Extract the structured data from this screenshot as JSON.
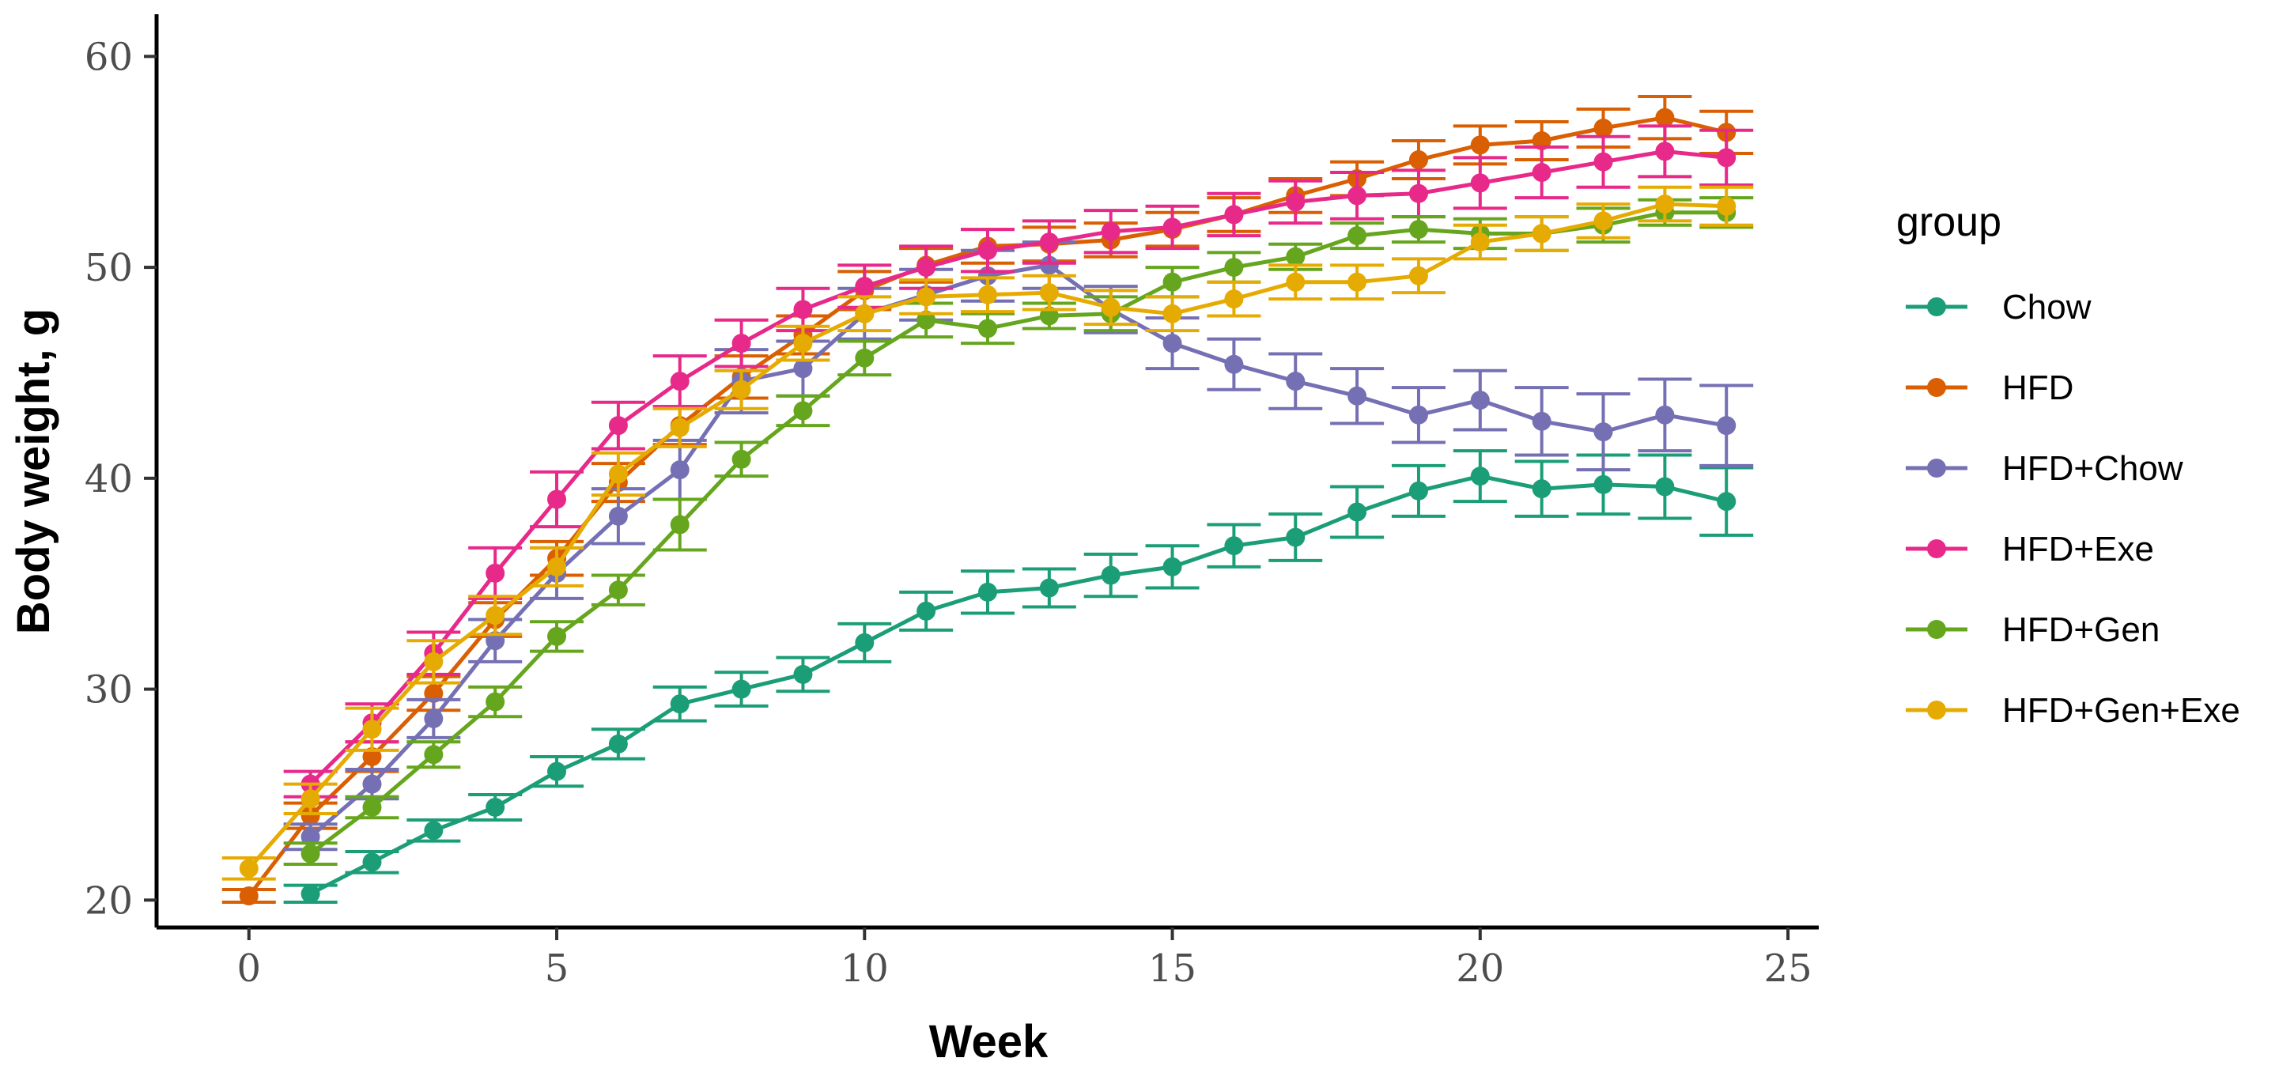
{
  "chart_data": {
    "type": "line",
    "title": "",
    "xlabel": "Week",
    "ylabel": "Body weight, g",
    "xlim": [
      -1.5,
      25.5
    ],
    "ylim": [
      18.7,
      62
    ],
    "xticks": [
      0,
      5,
      10,
      15,
      20,
      25
    ],
    "yticks": [
      20,
      30,
      40,
      50,
      60
    ],
    "grid": false,
    "legend": {
      "title": "group",
      "position": "right"
    },
    "series": [
      {
        "name": "Chow",
        "color": "#1B9E77",
        "x": [
          1,
          2,
          3,
          4,
          5,
          6,
          7,
          8,
          9,
          10,
          11,
          12,
          13,
          14,
          15,
          16,
          17,
          18,
          19,
          20,
          21,
          22,
          23,
          24
        ],
        "y": [
          20.3,
          21.8,
          23.3,
          24.4,
          26.1,
          27.4,
          29.3,
          30.0,
          30.7,
          32.2,
          33.7,
          34.6,
          34.8,
          35.4,
          35.8,
          36.8,
          37.2,
          38.4,
          39.4,
          40.1,
          39.5,
          39.7,
          39.6,
          38.9
        ],
        "err": [
          0.4,
          0.5,
          0.5,
          0.6,
          0.7,
          0.7,
          0.8,
          0.8,
          0.8,
          0.9,
          0.9,
          1.0,
          0.9,
          1.0,
          1.0,
          1.0,
          1.1,
          1.2,
          1.2,
          1.2,
          1.3,
          1.4,
          1.5,
          1.6
        ]
      },
      {
        "name": "HFD",
        "color": "#D95F02",
        "x": [
          0,
          1,
          2,
          3,
          4,
          5,
          6,
          7,
          8,
          9,
          10,
          11,
          12,
          13,
          14,
          15,
          16,
          17,
          18,
          19,
          20,
          21,
          22,
          23,
          24
        ],
        "y": [
          20.2,
          24.0,
          26.8,
          29.8,
          33.3,
          36.2,
          39.8,
          42.5,
          44.8,
          46.8,
          48.9,
          50.1,
          51.0,
          51.1,
          51.3,
          51.8,
          52.5,
          53.4,
          54.2,
          55.1,
          55.8,
          56.0,
          56.6,
          57.1,
          56.4
        ],
        "err": [
          0.3,
          0.6,
          0.7,
          0.8,
          0.8,
          0.8,
          0.9,
          0.9,
          1.0,
          0.9,
          0.9,
          0.8,
          0.8,
          0.8,
          0.8,
          0.8,
          0.8,
          0.8,
          0.8,
          0.9,
          0.9,
          0.9,
          0.9,
          1.0,
          1.0
        ]
      },
      {
        "name": "HFD+Chow",
        "color": "#7570B3",
        "x": [
          1,
          2,
          3,
          4,
          5,
          6,
          7,
          8,
          9,
          10,
          11,
          12,
          13,
          14,
          15,
          16,
          17,
          18,
          19,
          20,
          21,
          22,
          23,
          24
        ],
        "y": [
          23.0,
          25.5,
          28.6,
          32.3,
          35.5,
          38.2,
          40.4,
          44.6,
          45.2,
          47.8,
          48.7,
          49.6,
          50.1,
          48.0,
          46.4,
          45.4,
          44.6,
          43.9,
          43.0,
          43.7,
          42.7,
          42.2,
          43.0,
          42.5
        ],
        "err": [
          0.6,
          0.7,
          0.9,
          1.0,
          1.2,
          1.3,
          1.4,
          1.5,
          1.3,
          1.2,
          1.2,
          1.2,
          1.1,
          1.1,
          1.2,
          1.2,
          1.3,
          1.3,
          1.3,
          1.4,
          1.6,
          1.8,
          1.7,
          1.9
        ]
      },
      {
        "name": "HFD+Exe",
        "color": "#E7298A",
        "x": [
          1,
          2,
          3,
          4,
          5,
          6,
          7,
          8,
          9,
          10,
          11,
          12,
          13,
          14,
          15,
          16,
          17,
          18,
          19,
          20,
          21,
          22,
          23,
          24
        ],
        "y": [
          25.5,
          28.4,
          31.7,
          35.5,
          39.0,
          42.5,
          44.6,
          46.4,
          48.0,
          49.1,
          50.0,
          50.8,
          51.2,
          51.7,
          51.9,
          52.5,
          53.1,
          53.4,
          53.5,
          54.0,
          54.5,
          55.0,
          55.5,
          55.2
        ],
        "err": [
          0.6,
          0.9,
          1.0,
          1.2,
          1.3,
          1.1,
          1.2,
          1.1,
          1.0,
          1.0,
          1.0,
          1.0,
          1.0,
          1.0,
          1.0,
          1.0,
          1.0,
          1.1,
          1.1,
          1.2,
          1.2,
          1.2,
          1.2,
          1.3
        ]
      },
      {
        "name": "HFD+Gen",
        "color": "#66A61E",
        "x": [
          1,
          2,
          3,
          4,
          5,
          6,
          7,
          8,
          9,
          10,
          11,
          12,
          13,
          14,
          15,
          16,
          17,
          18,
          19,
          20,
          21,
          22,
          23,
          24
        ],
        "y": [
          22.2,
          24.4,
          26.9,
          29.4,
          32.5,
          34.7,
          37.8,
          40.9,
          43.2,
          45.7,
          47.5,
          47.1,
          47.7,
          47.8,
          49.3,
          50.0,
          50.5,
          51.5,
          51.8,
          51.6,
          51.6,
          52.0,
          52.6,
          52.6
        ],
        "err": [
          0.5,
          0.5,
          0.6,
          0.7,
          0.7,
          0.7,
          1.2,
          0.8,
          0.7,
          0.8,
          0.8,
          0.7,
          0.6,
          0.8,
          0.7,
          0.7,
          0.6,
          0.6,
          0.6,
          0.7,
          0.8,
          0.8,
          0.6,
          0.7
        ]
      },
      {
        "name": "HFD+Gen+Exe",
        "color": "#E6AB02",
        "x": [
          0,
          1,
          2,
          3,
          4,
          5,
          6,
          7,
          8,
          9,
          10,
          11,
          12,
          13,
          14,
          15,
          16,
          17,
          18,
          19,
          20,
          21,
          22,
          23,
          24
        ],
        "y": [
          21.5,
          24.8,
          28.1,
          31.3,
          33.5,
          35.8,
          40.2,
          42.4,
          44.2,
          46.4,
          47.8,
          48.6,
          48.7,
          48.8,
          48.1,
          47.8,
          48.5,
          49.3,
          49.3,
          49.6,
          51.2,
          51.6,
          52.2,
          53.0,
          52.9
        ],
        "err": [
          0.5,
          0.7,
          1.0,
          1.0,
          0.9,
          0.9,
          1.0,
          0.9,
          0.9,
          0.8,
          0.8,
          0.8,
          0.8,
          0.8,
          0.8,
          0.8,
          0.8,
          0.8,
          0.8,
          0.8,
          0.8,
          0.8,
          0.8,
          0.8,
          0.9
        ]
      }
    ]
  }
}
